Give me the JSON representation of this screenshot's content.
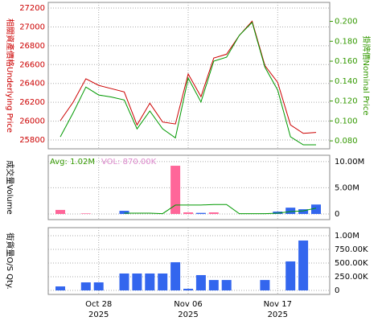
{
  "chart_data": [
    {
      "type": "line",
      "y_label": "相關資產價格Underlying Price",
      "y_label_color": "#cc0000",
      "y2_label": "掛牌價Nominal Price",
      "y2_label_color": "#339900",
      "ylim": [
        25706,
        27260
      ],
      "yticks": [
        25800,
        26000,
        26200,
        26400,
        26600,
        26800,
        27000,
        27200
      ],
      "y2lim": [
        0.072,
        0.219
      ],
      "y2ticks": [
        {
          "value": 0.08,
          "label": "0.080"
        },
        {
          "value": 0.1,
          "label": "0.100"
        },
        {
          "value": 0.12,
          "label": "0.120"
        },
        {
          "value": 0.14,
          "label": "0.140"
        },
        {
          "value": 0.16,
          "label": "0.160"
        },
        {
          "value": 0.18,
          "label": "0.180"
        },
        {
          "value": 0.2,
          "label": "0.200"
        }
      ],
      "grid": true,
      "series": [
        {
          "color": "#cc0000",
          "values": [
            26005,
            26200,
            26450,
            26380,
            26345,
            26310,
            25960,
            26190,
            25990,
            25970,
            26500,
            26260,
            26670,
            26710,
            26910,
            27060,
            26590,
            26410,
            25960,
            25870,
            25880
          ]
        },
        {
          "color": "#009900",
          "axis": "y2",
          "values": [
            0.084,
            0.108,
            0.134,
            0.126,
            0.124,
            0.121,
            0.092,
            0.11,
            0.092,
            0.083,
            0.143,
            0.119,
            0.16,
            0.164,
            0.186,
            0.199,
            0.154,
            0.131,
            0.084,
            0.076,
            0.076
          ]
        }
      ]
    },
    {
      "type": "bar",
      "y_label": "成交量Volume",
      "y_label_color": "#000000",
      "y_axis_side": "right",
      "annotations": [
        {
          "text": "Avg: 1.02M",
          "color": "#339900"
        },
        {
          "text": "VOL: 870.00K",
          "color": "#dd88cc"
        }
      ],
      "ylim": [
        -1080000,
        11200000
      ],
      "yticks": [
        0,
        {
          "value": 5000000,
          "label": "5.00M"
        },
        {
          "value": 10000000,
          "label": "10.00M"
        }
      ],
      "grid": true,
      "series": [
        {
          "type": "bar",
          "values": [
            770000,
            null,
            100000,
            null,
            null,
            600000,
            null,
            null,
            null,
            9200000,
            300000,
            200000,
            300000,
            null,
            null,
            null,
            100000,
            450000,
            1200000,
            900000,
            1800000
          ],
          "colors": [
            "#ff6699",
            null,
            "#ff6699",
            null,
            null,
            "#3366ee",
            null,
            null,
            null,
            "#ff6699",
            "#ff6699",
            "#3366ee",
            "#ff6699",
            null,
            null,
            null,
            "#3366ee",
            "#3366ee",
            "#3366ee",
            "#3366ee",
            "#3366ee"
          ]
        },
        {
          "type": "line",
          "color": "#009900",
          "values": [
            null,
            null,
            null,
            null,
            null,
            150000,
            150000,
            150000,
            50000,
            1700000,
            1700000,
            1700000,
            1800000,
            1800000,
            50000,
            50000,
            50000,
            150000,
            450000,
            600000,
            1100000
          ]
        }
      ]
    },
    {
      "type": "bar",
      "y_label": "街貨量O/S Qty.",
      "y_label_color": "#000000",
      "y_axis_side": "right",
      "ylim": [
        -73500,
        1147000
      ],
      "yticks": [
        0,
        {
          "value": 250000,
          "label": "250.00K"
        },
        {
          "value": 500000,
          "label": "500.00K"
        },
        {
          "value": 750000,
          "label": "750.00K"
        },
        {
          "value": 1000000,
          "label": "1.00M"
        }
      ],
      "grid": true,
      "categories": [
        null,
        null,
        null,
        "Oct 28",
        null,
        null,
        null,
        null,
        null,
        null,
        "Nov 06",
        null,
        null,
        null,
        null,
        null,
        null,
        "Nov 17",
        null,
        null,
        null
      ],
      "category_sublabels": [
        null,
        null,
        null,
        "2025",
        null,
        null,
        null,
        null,
        null,
        null,
        "2025",
        null,
        null,
        null,
        null,
        null,
        null,
        "2025",
        null,
        null,
        null
      ],
      "series": [
        {
          "type": "bar",
          "color": "#3366ee",
          "values": [
            73000,
            null,
            147000,
            147000,
            null,
            309000,
            309000,
            309000,
            309000,
            515000,
            30000,
            280000,
            190000,
            190000,
            null,
            null,
            190000,
            null,
            530000,
            912000,
            null
          ]
        }
      ]
    }
  ]
}
